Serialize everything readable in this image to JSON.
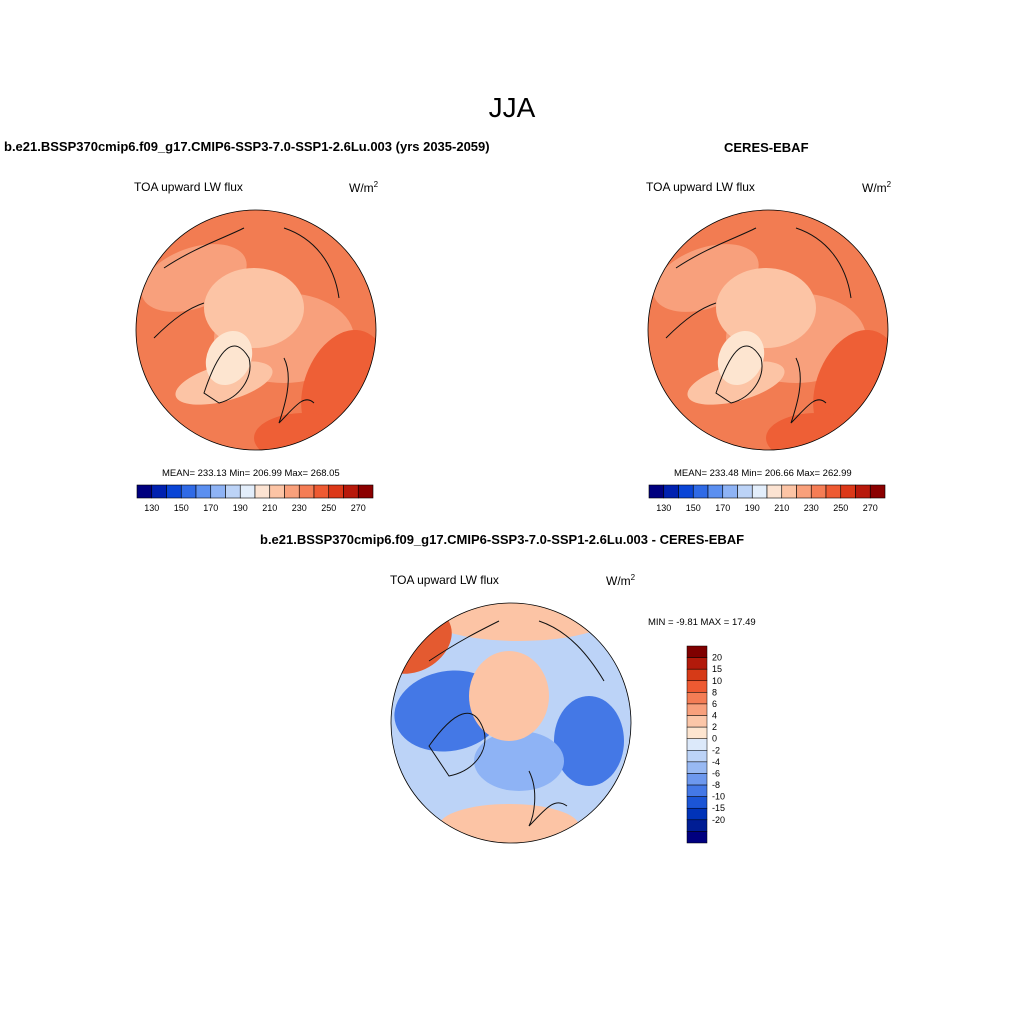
{
  "title": "JJA",
  "panels": [
    {
      "id": "model",
      "heading": "b.e21.BSSP370cmip6.f09_g17.CMIP6-SSP3-7.0-SSP1-2.6Lu.003 (yrs 2035-2059)",
      "variable": "TOA upward LW flux",
      "units_base": "W/m",
      "units_exp": "2",
      "stats": "MEAN= 233.13  Min= 206.99  Max= 268.05"
    },
    {
      "id": "obs",
      "heading": "CERES-EBAF",
      "variable": "TOA upward LW flux",
      "units_base": "W/m",
      "units_exp": "2",
      "stats": "MEAN= 233.48  Min= 206.66  Max= 262.99"
    },
    {
      "id": "diff",
      "heading": "b.e21.BSSP370cmip6.f09_g17.CMIP6-SSP3-7.0-SSP1-2.6Lu.003 - CERES-EBAF",
      "variable": "TOA upward LW flux",
      "units_base": "W/m",
      "units_exp": "2",
      "stats": "MIN =  -9.81 MAX =  17.49"
    }
  ],
  "colorbars": {
    "abs": {
      "colors": [
        "#00007f",
        "#0021b0",
        "#0a45d6",
        "#2f6ae6",
        "#5b8ff0",
        "#8eb3f5",
        "#bcd3f7",
        "#e3eefb",
        "#fce3d2",
        "#fcc4a5",
        "#f9a07b",
        "#f57d55",
        "#ee5a32",
        "#dc3818",
        "#b8190b",
        "#8b0000"
      ],
      "tick_labels": [
        "130",
        "150",
        "170",
        "190",
        "210",
        "230",
        "250",
        "270"
      ]
    },
    "diff": {
      "colors": [
        "#7f0000",
        "#b21a0b",
        "#d63a17",
        "#ee5a32",
        "#f47d55",
        "#f8a07c",
        "#fbc6a8",
        "#fde5d0",
        "#dce9fa",
        "#bcd3f7",
        "#98b9f3",
        "#6d98ee",
        "#4478e6",
        "#1b55d6",
        "#0033b8",
        "#001d94",
        "#00007f"
      ],
      "tick_labels": [
        "20",
        "15",
        "10",
        "8",
        "6",
        "4",
        "2",
        "0",
        "-2",
        "-4",
        "-6",
        "-8",
        "-10",
        "-15",
        "-20"
      ]
    }
  },
  "map_colors": {
    "model_base": "#f27c52",
    "model_light": "#f8a07c",
    "model_lighter": "#fcc4a5",
    "model_dark": "#ee5f36",
    "diff_base": "#bcd3f7",
    "diff_blue": "#4478e6",
    "diff_mid_blue": "#8eb3f5",
    "diff_warm": "#fcc4a5",
    "diff_red": "#e45a30"
  }
}
